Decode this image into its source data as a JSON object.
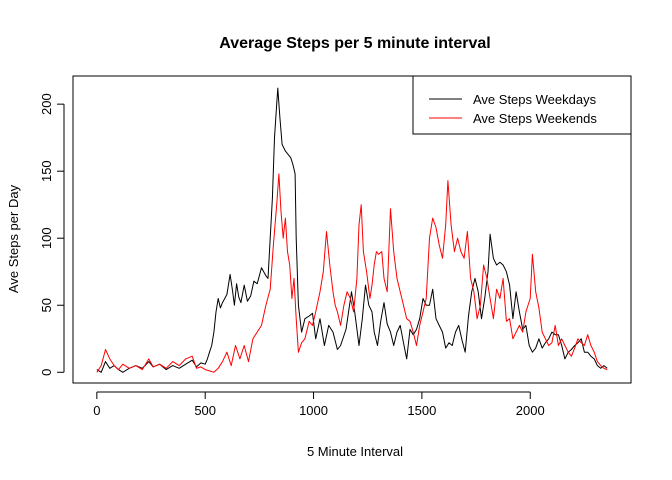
{
  "chart_data": {
    "type": "line",
    "title": "Average Steps per 5 minute interval",
    "xlabel": "5 Minute Interval",
    "ylabel": "Ave Steps per Day",
    "xlim": [
      -110,
      2465
    ],
    "ylim": [
      -8,
      221
    ],
    "xticks": [
      0,
      500,
      1000,
      1500,
      2000
    ],
    "yticks": [
      0,
      50,
      100,
      150,
      200
    ],
    "grid": false,
    "legend_position": "top-right",
    "series": [
      {
        "name": "Ave Steps Weekdays",
        "color": "#000000",
        "points": [
          [
            0,
            2
          ],
          [
            20,
            0
          ],
          [
            40,
            8
          ],
          [
            60,
            3
          ],
          [
            80,
            5
          ],
          [
            100,
            2
          ],
          [
            120,
            0
          ],
          [
            150,
            3
          ],
          [
            180,
            5
          ],
          [
            210,
            3
          ],
          [
            240,
            8
          ],
          [
            260,
            4
          ],
          [
            290,
            6
          ],
          [
            320,
            2
          ],
          [
            350,
            5
          ],
          [
            380,
            3
          ],
          [
            410,
            6
          ],
          [
            440,
            9
          ],
          [
            460,
            4
          ],
          [
            480,
            7
          ],
          [
            500,
            6
          ],
          [
            510,
            10
          ],
          [
            520,
            15
          ],
          [
            530,
            20
          ],
          [
            540,
            30
          ],
          [
            550,
            45
          ],
          [
            560,
            55
          ],
          [
            570,
            48
          ],
          [
            580,
            52
          ],
          [
            600,
            58
          ],
          [
            615,
            73
          ],
          [
            625,
            62
          ],
          [
            635,
            50
          ],
          [
            645,
            66
          ],
          [
            655,
            56
          ],
          [
            665,
            52
          ],
          [
            680,
            65
          ],
          [
            695,
            53
          ],
          [
            710,
            57
          ],
          [
            725,
            68
          ],
          [
            740,
            66
          ],
          [
            760,
            78
          ],
          [
            780,
            72
          ],
          [
            790,
            70
          ],
          [
            800,
            100
          ],
          [
            810,
            130
          ],
          [
            820,
            175
          ],
          [
            830,
            200
          ],
          [
            835,
            212
          ],
          [
            845,
            190
          ],
          [
            855,
            170
          ],
          [
            870,
            165
          ],
          [
            885,
            162
          ],
          [
            895,
            160
          ],
          [
            905,
            155
          ],
          [
            915,
            148
          ],
          [
            920,
            100
          ],
          [
            930,
            50
          ],
          [
            945,
            30
          ],
          [
            960,
            40
          ],
          [
            980,
            42
          ],
          [
            995,
            44
          ],
          [
            1010,
            25
          ],
          [
            1030,
            40
          ],
          [
            1050,
            20
          ],
          [
            1070,
            35
          ],
          [
            1090,
            30
          ],
          [
            1110,
            17
          ],
          [
            1125,
            20
          ],
          [
            1150,
            32
          ],
          [
            1175,
            60
          ],
          [
            1190,
            45
          ],
          [
            1210,
            20
          ],
          [
            1225,
            40
          ],
          [
            1240,
            65
          ],
          [
            1255,
            50
          ],
          [
            1270,
            45
          ],
          [
            1280,
            30
          ],
          [
            1295,
            20
          ],
          [
            1310,
            38
          ],
          [
            1325,
            52
          ],
          [
            1340,
            36
          ],
          [
            1355,
            30
          ],
          [
            1370,
            20
          ],
          [
            1385,
            30
          ],
          [
            1400,
            35
          ],
          [
            1415,
            22
          ],
          [
            1430,
            10
          ],
          [
            1445,
            32
          ],
          [
            1460,
            28
          ],
          [
            1475,
            32
          ],
          [
            1490,
            40
          ],
          [
            1505,
            55
          ],
          [
            1520,
            50
          ],
          [
            1535,
            50
          ],
          [
            1550,
            62
          ],
          [
            1565,
            40
          ],
          [
            1580,
            35
          ],
          [
            1595,
            30
          ],
          [
            1610,
            18
          ],
          [
            1625,
            22
          ],
          [
            1640,
            20
          ],
          [
            1655,
            30
          ],
          [
            1670,
            35
          ],
          [
            1685,
            24
          ],
          [
            1700,
            15
          ],
          [
            1715,
            42
          ],
          [
            1730,
            60
          ],
          [
            1745,
            70
          ],
          [
            1760,
            60
          ],
          [
            1775,
            40
          ],
          [
            1790,
            55
          ],
          [
            1805,
            75
          ],
          [
            1815,
            103
          ],
          [
            1830,
            85
          ],
          [
            1845,
            80
          ],
          [
            1860,
            82
          ],
          [
            1875,
            80
          ],
          [
            1890,
            75
          ],
          [
            1905,
            65
          ],
          [
            1920,
            40
          ],
          [
            1935,
            60
          ],
          [
            1950,
            45
          ],
          [
            1965,
            32
          ],
          [
            1980,
            35
          ],
          [
            1995,
            20
          ],
          [
            2010,
            15
          ],
          [
            2025,
            18
          ],
          [
            2040,
            25
          ],
          [
            2055,
            18
          ],
          [
            2070,
            22
          ],
          [
            2085,
            25
          ],
          [
            2100,
            30
          ],
          [
            2115,
            28
          ],
          [
            2130,
            28
          ],
          [
            2145,
            20
          ],
          [
            2160,
            10
          ],
          [
            2175,
            15
          ],
          [
            2190,
            17
          ],
          [
            2205,
            20
          ],
          [
            2220,
            22
          ],
          [
            2235,
            25
          ],
          [
            2250,
            15
          ],
          [
            2265,
            15
          ],
          [
            2280,
            12
          ],
          [
            2295,
            10
          ],
          [
            2310,
            5
          ],
          [
            2325,
            3
          ],
          [
            2340,
            5
          ],
          [
            2355,
            3
          ]
        ]
      },
      {
        "name": "Ave Steps Weekends",
        "color": "#ff0000",
        "points": [
          [
            0,
            0
          ],
          [
            20,
            5
          ],
          [
            40,
            17
          ],
          [
            60,
            10
          ],
          [
            80,
            5
          ],
          [
            100,
            2
          ],
          [
            120,
            6
          ],
          [
            150,
            3
          ],
          [
            180,
            5
          ],
          [
            210,
            2
          ],
          [
            240,
            10
          ],
          [
            260,
            4
          ],
          [
            290,
            6
          ],
          [
            320,
            3
          ],
          [
            350,
            8
          ],
          [
            380,
            5
          ],
          [
            410,
            10
          ],
          [
            440,
            12
          ],
          [
            460,
            3
          ],
          [
            480,
            4
          ],
          [
            500,
            2
          ],
          [
            520,
            1
          ],
          [
            540,
            0
          ],
          [
            560,
            3
          ],
          [
            580,
            8
          ],
          [
            600,
            15
          ],
          [
            620,
            5
          ],
          [
            640,
            20
          ],
          [
            660,
            10
          ],
          [
            680,
            20
          ],
          [
            700,
            8
          ],
          [
            720,
            25
          ],
          [
            740,
            30
          ],
          [
            760,
            35
          ],
          [
            780,
            50
          ],
          [
            800,
            62
          ],
          [
            815,
            95
          ],
          [
            830,
            125
          ],
          [
            840,
            148
          ],
          [
            850,
            120
          ],
          [
            860,
            100
          ],
          [
            870,
            115
          ],
          [
            880,
            90
          ],
          [
            890,
            80
          ],
          [
            900,
            55
          ],
          [
            910,
            70
          ],
          [
            920,
            40
          ],
          [
            930,
            15
          ],
          [
            945,
            22
          ],
          [
            960,
            25
          ],
          [
            980,
            38
          ],
          [
            995,
            35
          ],
          [
            1010,
            45
          ],
          [
            1030,
            60
          ],
          [
            1045,
            75
          ],
          [
            1060,
            105
          ],
          [
            1075,
            80
          ],
          [
            1090,
            60
          ],
          [
            1100,
            50
          ],
          [
            1110,
            45
          ],
          [
            1125,
            35
          ],
          [
            1140,
            50
          ],
          [
            1155,
            60
          ],
          [
            1170,
            55
          ],
          [
            1185,
            45
          ],
          [
            1200,
            70
          ],
          [
            1210,
            110
          ],
          [
            1220,
            125
          ],
          [
            1230,
            90
          ],
          [
            1245,
            75
          ],
          [
            1260,
            55
          ],
          [
            1270,
            65
          ],
          [
            1280,
            80
          ],
          [
            1290,
            90
          ],
          [
            1300,
            88
          ],
          [
            1315,
            90
          ],
          [
            1325,
            70
          ],
          [
            1340,
            60
          ],
          [
            1355,
            122
          ],
          [
            1370,
            90
          ],
          [
            1385,
            70
          ],
          [
            1400,
            60
          ],
          [
            1415,
            50
          ],
          [
            1430,
            40
          ],
          [
            1445,
            38
          ],
          [
            1460,
            30
          ],
          [
            1475,
            20
          ],
          [
            1490,
            35
          ],
          [
            1505,
            45
          ],
          [
            1520,
            55
          ],
          [
            1535,
            100
          ],
          [
            1550,
            115
          ],
          [
            1565,
            108
          ],
          [
            1580,
            95
          ],
          [
            1595,
            85
          ],
          [
            1610,
            110
          ],
          [
            1620,
            143
          ],
          [
            1635,
            110
          ],
          [
            1650,
            90
          ],
          [
            1665,
            100
          ],
          [
            1680,
            90
          ],
          [
            1695,
            85
          ],
          [
            1710,
            105
          ],
          [
            1725,
            70
          ],
          [
            1740,
            60
          ],
          [
            1755,
            40
          ],
          [
            1770,
            50
          ],
          [
            1785,
            80
          ],
          [
            1800,
            70
          ],
          [
            1815,
            55
          ],
          [
            1830,
            40
          ],
          [
            1845,
            62
          ],
          [
            1860,
            55
          ],
          [
            1875,
            70
          ],
          [
            1890,
            38
          ],
          [
            1905,
            40
          ],
          [
            1920,
            25
          ],
          [
            1935,
            30
          ],
          [
            1950,
            35
          ],
          [
            1965,
            30
          ],
          [
            1980,
            45
          ],
          [
            2000,
            55
          ],
          [
            2010,
            88
          ],
          [
            2025,
            60
          ],
          [
            2040,
            48
          ],
          [
            2055,
            30
          ],
          [
            2070,
            25
          ],
          [
            2085,
            20
          ],
          [
            2100,
            22
          ],
          [
            2115,
            35
          ],
          [
            2130,
            20
          ],
          [
            2145,
            25
          ],
          [
            2160,
            20
          ],
          [
            2175,
            15
          ],
          [
            2190,
            12
          ],
          [
            2205,
            18
          ],
          [
            2220,
            25
          ],
          [
            2235,
            22
          ],
          [
            2250,
            20
          ],
          [
            2265,
            28
          ],
          [
            2280,
            20
          ],
          [
            2295,
            15
          ],
          [
            2310,
            8
          ],
          [
            2325,
            5
          ],
          [
            2340,
            3
          ],
          [
            2355,
            2
          ]
        ]
      }
    ]
  }
}
